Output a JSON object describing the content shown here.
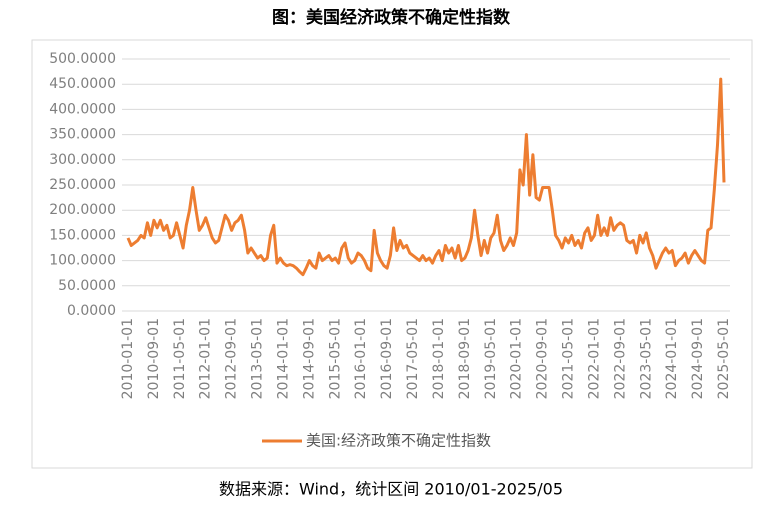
{
  "chart_data": {
    "type": "line",
    "title": "图：美国经济政策不确定性指数",
    "source": "数据来源：Wind，统计区间 2010/01-2025/05",
    "categories": [
      "2010-01-01",
      null,
      null,
      null,
      null,
      null,
      null,
      null,
      "2010-09-01",
      null,
      null,
      null,
      null,
      null,
      null,
      null,
      "2011-05-01",
      null,
      null,
      null,
      null,
      null,
      null,
      null,
      "2012-01-01",
      null,
      null,
      null,
      null,
      null,
      null,
      null,
      "2012-09-01",
      null,
      null,
      null,
      null,
      null,
      null,
      null,
      "2013-05-01",
      null,
      null,
      null,
      null,
      null,
      null,
      null,
      "2014-01-01",
      null,
      null,
      null,
      null,
      null,
      null,
      null,
      "2014-09-01",
      null,
      null,
      null,
      null,
      null,
      null,
      null,
      "2015-05-01",
      null,
      null,
      null,
      null,
      null,
      null,
      null,
      "2016-01-01",
      null,
      null,
      null,
      null,
      null,
      null,
      null,
      "2016-09-01",
      null,
      null,
      null,
      null,
      null,
      null,
      null,
      "2017-05-01",
      null,
      null,
      null,
      null,
      null,
      null,
      null,
      "2018-01-01",
      null,
      null,
      null,
      null,
      null,
      null,
      null,
      "2018-09-01",
      null,
      null,
      null,
      null,
      null,
      null,
      null,
      "2019-05-01",
      null,
      null,
      null,
      null,
      null,
      null,
      null,
      "2020-01-01",
      null,
      null,
      null,
      null,
      null,
      null,
      null,
      "2020-09-01",
      null,
      null,
      null,
      null,
      null,
      null,
      null,
      "2021-05-01",
      null,
      null,
      null,
      null,
      null,
      null,
      null,
      "2022-01-01",
      null,
      null,
      null,
      null,
      null,
      null,
      null,
      "2022-09-01",
      null,
      null,
      null,
      null,
      null,
      null,
      null,
      "2023-05-01",
      null,
      null,
      null,
      null,
      null,
      null,
      null,
      "2024-01-01",
      null,
      null,
      null,
      null,
      null,
      null,
      null,
      "2024-09-01",
      null,
      null,
      null,
      null,
      null,
      null,
      null,
      "2025-05-01"
    ],
    "series": [
      {
        "name": "美国:经济政策不确定性指数",
        "color": "#ed7d31",
        "values": [
          145,
          130,
          135,
          140,
          150,
          145,
          175,
          150,
          180,
          165,
          180,
          160,
          170,
          145,
          150,
          175,
          150,
          125,
          170,
          200,
          245,
          200,
          160,
          170,
          185,
          165,
          145,
          135,
          140,
          165,
          190,
          180,
          160,
          175,
          180,
          190,
          160,
          115,
          125,
          115,
          105,
          110,
          100,
          105,
          150,
          170,
          95,
          105,
          95,
          90,
          92,
          90,
          85,
          78,
          72,
          85,
          100,
          90,
          85,
          115,
          100,
          105,
          110,
          100,
          105,
          95,
          125,
          135,
          105,
          95,
          100,
          115,
          110,
          100,
          85,
          80,
          160,
          115,
          100,
          90,
          85,
          110,
          165,
          120,
          140,
          125,
          130,
          115,
          110,
          105,
          100,
          110,
          100,
          105,
          95,
          110,
          120,
          100,
          130,
          115,
          125,
          105,
          130,
          100,
          105,
          120,
          145,
          200,
          150,
          110,
          140,
          115,
          145,
          155,
          190,
          140,
          120,
          130,
          145,
          130,
          155,
          280,
          250,
          350,
          230,
          310,
          225,
          220,
          245,
          245,
          245,
          200,
          150,
          140,
          125,
          145,
          135,
          150,
          130,
          140,
          125,
          155,
          165,
          140,
          150,
          190,
          150,
          165,
          150,
          185,
          160,
          170,
          175,
          170,
          140,
          135,
          140,
          115,
          150,
          135,
          155,
          125,
          110,
          85,
          100,
          115,
          125,
          115,
          120,
          90,
          100,
          105,
          115,
          95,
          110,
          120,
          110,
          100,
          95,
          160,
          165,
          240,
          330,
          460,
          255
        ]
      }
    ],
    "ylim": [
      0,
      500
    ],
    "yticks": [
      {
        "value": 0,
        "label": "0.0000"
      },
      {
        "value": 50,
        "label": "50.0000"
      },
      {
        "value": 100,
        "label": "100.0000"
      },
      {
        "value": 150,
        "label": "150.0000"
      },
      {
        "value": 200,
        "label": "200.0000"
      },
      {
        "value": 250,
        "label": "250.0000"
      },
      {
        "value": 300,
        "label": "300.0000"
      },
      {
        "value": 350,
        "label": "350.0000"
      },
      {
        "value": 400,
        "label": "400.0000"
      },
      {
        "value": 450,
        "label": "450.0000"
      },
      {
        "value": 500,
        "label": "500.0000"
      }
    ],
    "grid": true,
    "legend": "bottom"
  }
}
